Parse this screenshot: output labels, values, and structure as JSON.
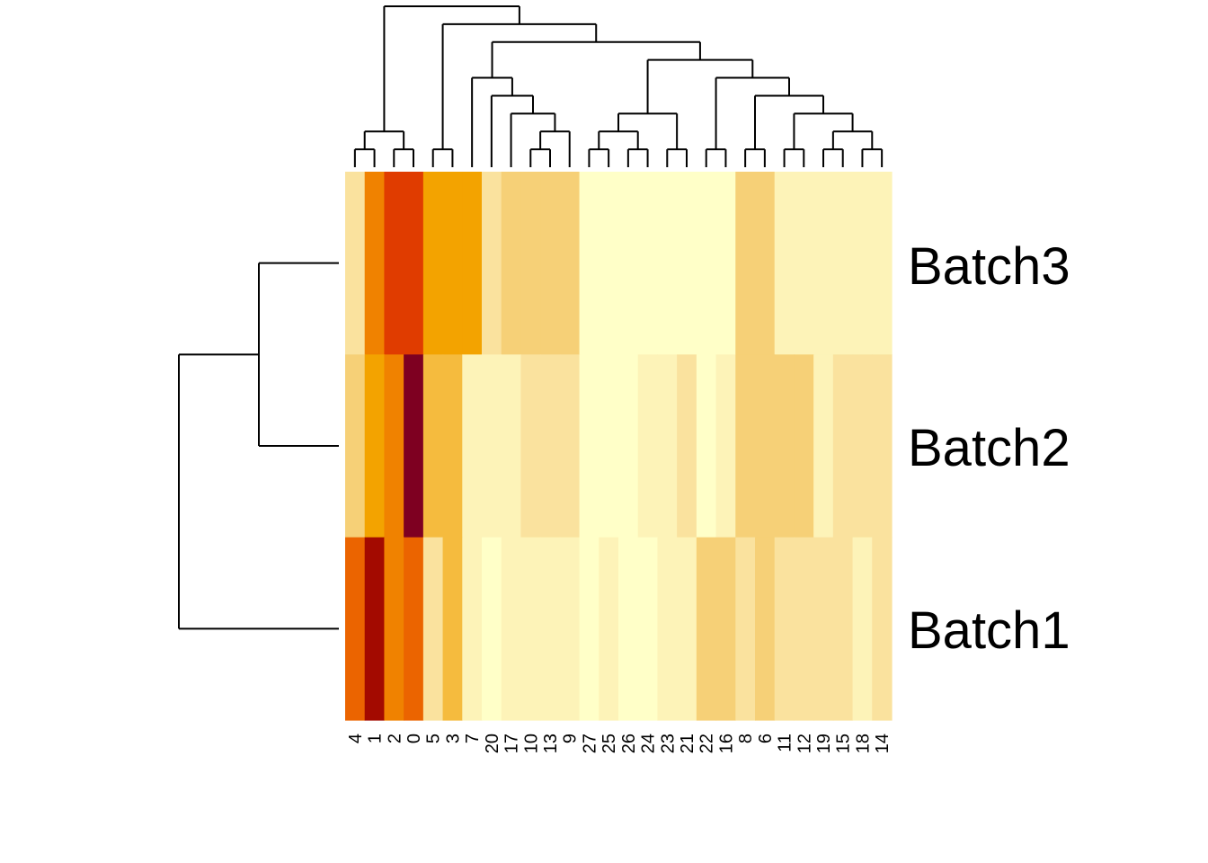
{
  "chart_data": {
    "type": "heatmap",
    "title": "",
    "xlabel": "",
    "ylabel": "",
    "rows": [
      "Batch3",
      "Batch2",
      "Batch1"
    ],
    "columns": [
      "4",
      "1",
      "2",
      "0",
      "5",
      "3",
      "7",
      "20",
      "17",
      "10",
      "13",
      "9",
      "27",
      "25",
      "26",
      "24",
      "23",
      "21",
      "22",
      "16",
      "8",
      "6",
      "11",
      "12",
      "19",
      "15",
      "18",
      "14"
    ],
    "color_scale": [
      "#FFFFC8",
      "#FDF3B8",
      "#FAE29E",
      "#F6D077",
      "#F5BB3E",
      "#F3A300",
      "#F08200",
      "#EB6400",
      "#E03C00",
      "#A30A00",
      "#7E0021"
    ],
    "levels": [
      [
        2,
        6,
        8,
        8,
        5,
        5,
        5,
        2,
        3,
        3,
        3,
        3,
        0,
        0,
        0,
        0,
        0,
        0,
        0,
        0,
        3,
        3,
        1,
        1,
        1,
        1,
        1,
        1
      ],
      [
        3,
        5,
        6,
        10,
        4,
        4,
        1,
        1,
        1,
        2,
        2,
        2,
        0,
        0,
        0,
        1,
        1,
        2,
        0,
        1,
        3,
        3,
        3,
        3,
        1,
        2,
        2,
        2
      ],
      [
        7,
        9,
        6,
        7,
        2,
        4,
        1,
        0,
        1,
        1,
        1,
        1,
        0,
        1,
        0,
        0,
        1,
        1,
        3,
        3,
        2,
        3,
        2,
        2,
        2,
        2,
        1,
        2
      ]
    ],
    "row_dendrogram": "((Batch3,Batch2),Batch1)",
    "column_dendrogram": "(((4,1),(2,0)),((5,3),((7,(20,(17,((10,13),9)))),((((27,25),(26,24)),(23,21)),((22,16),((8,6),((11,12),((19,15),(18,14)))))))))"
  }
}
